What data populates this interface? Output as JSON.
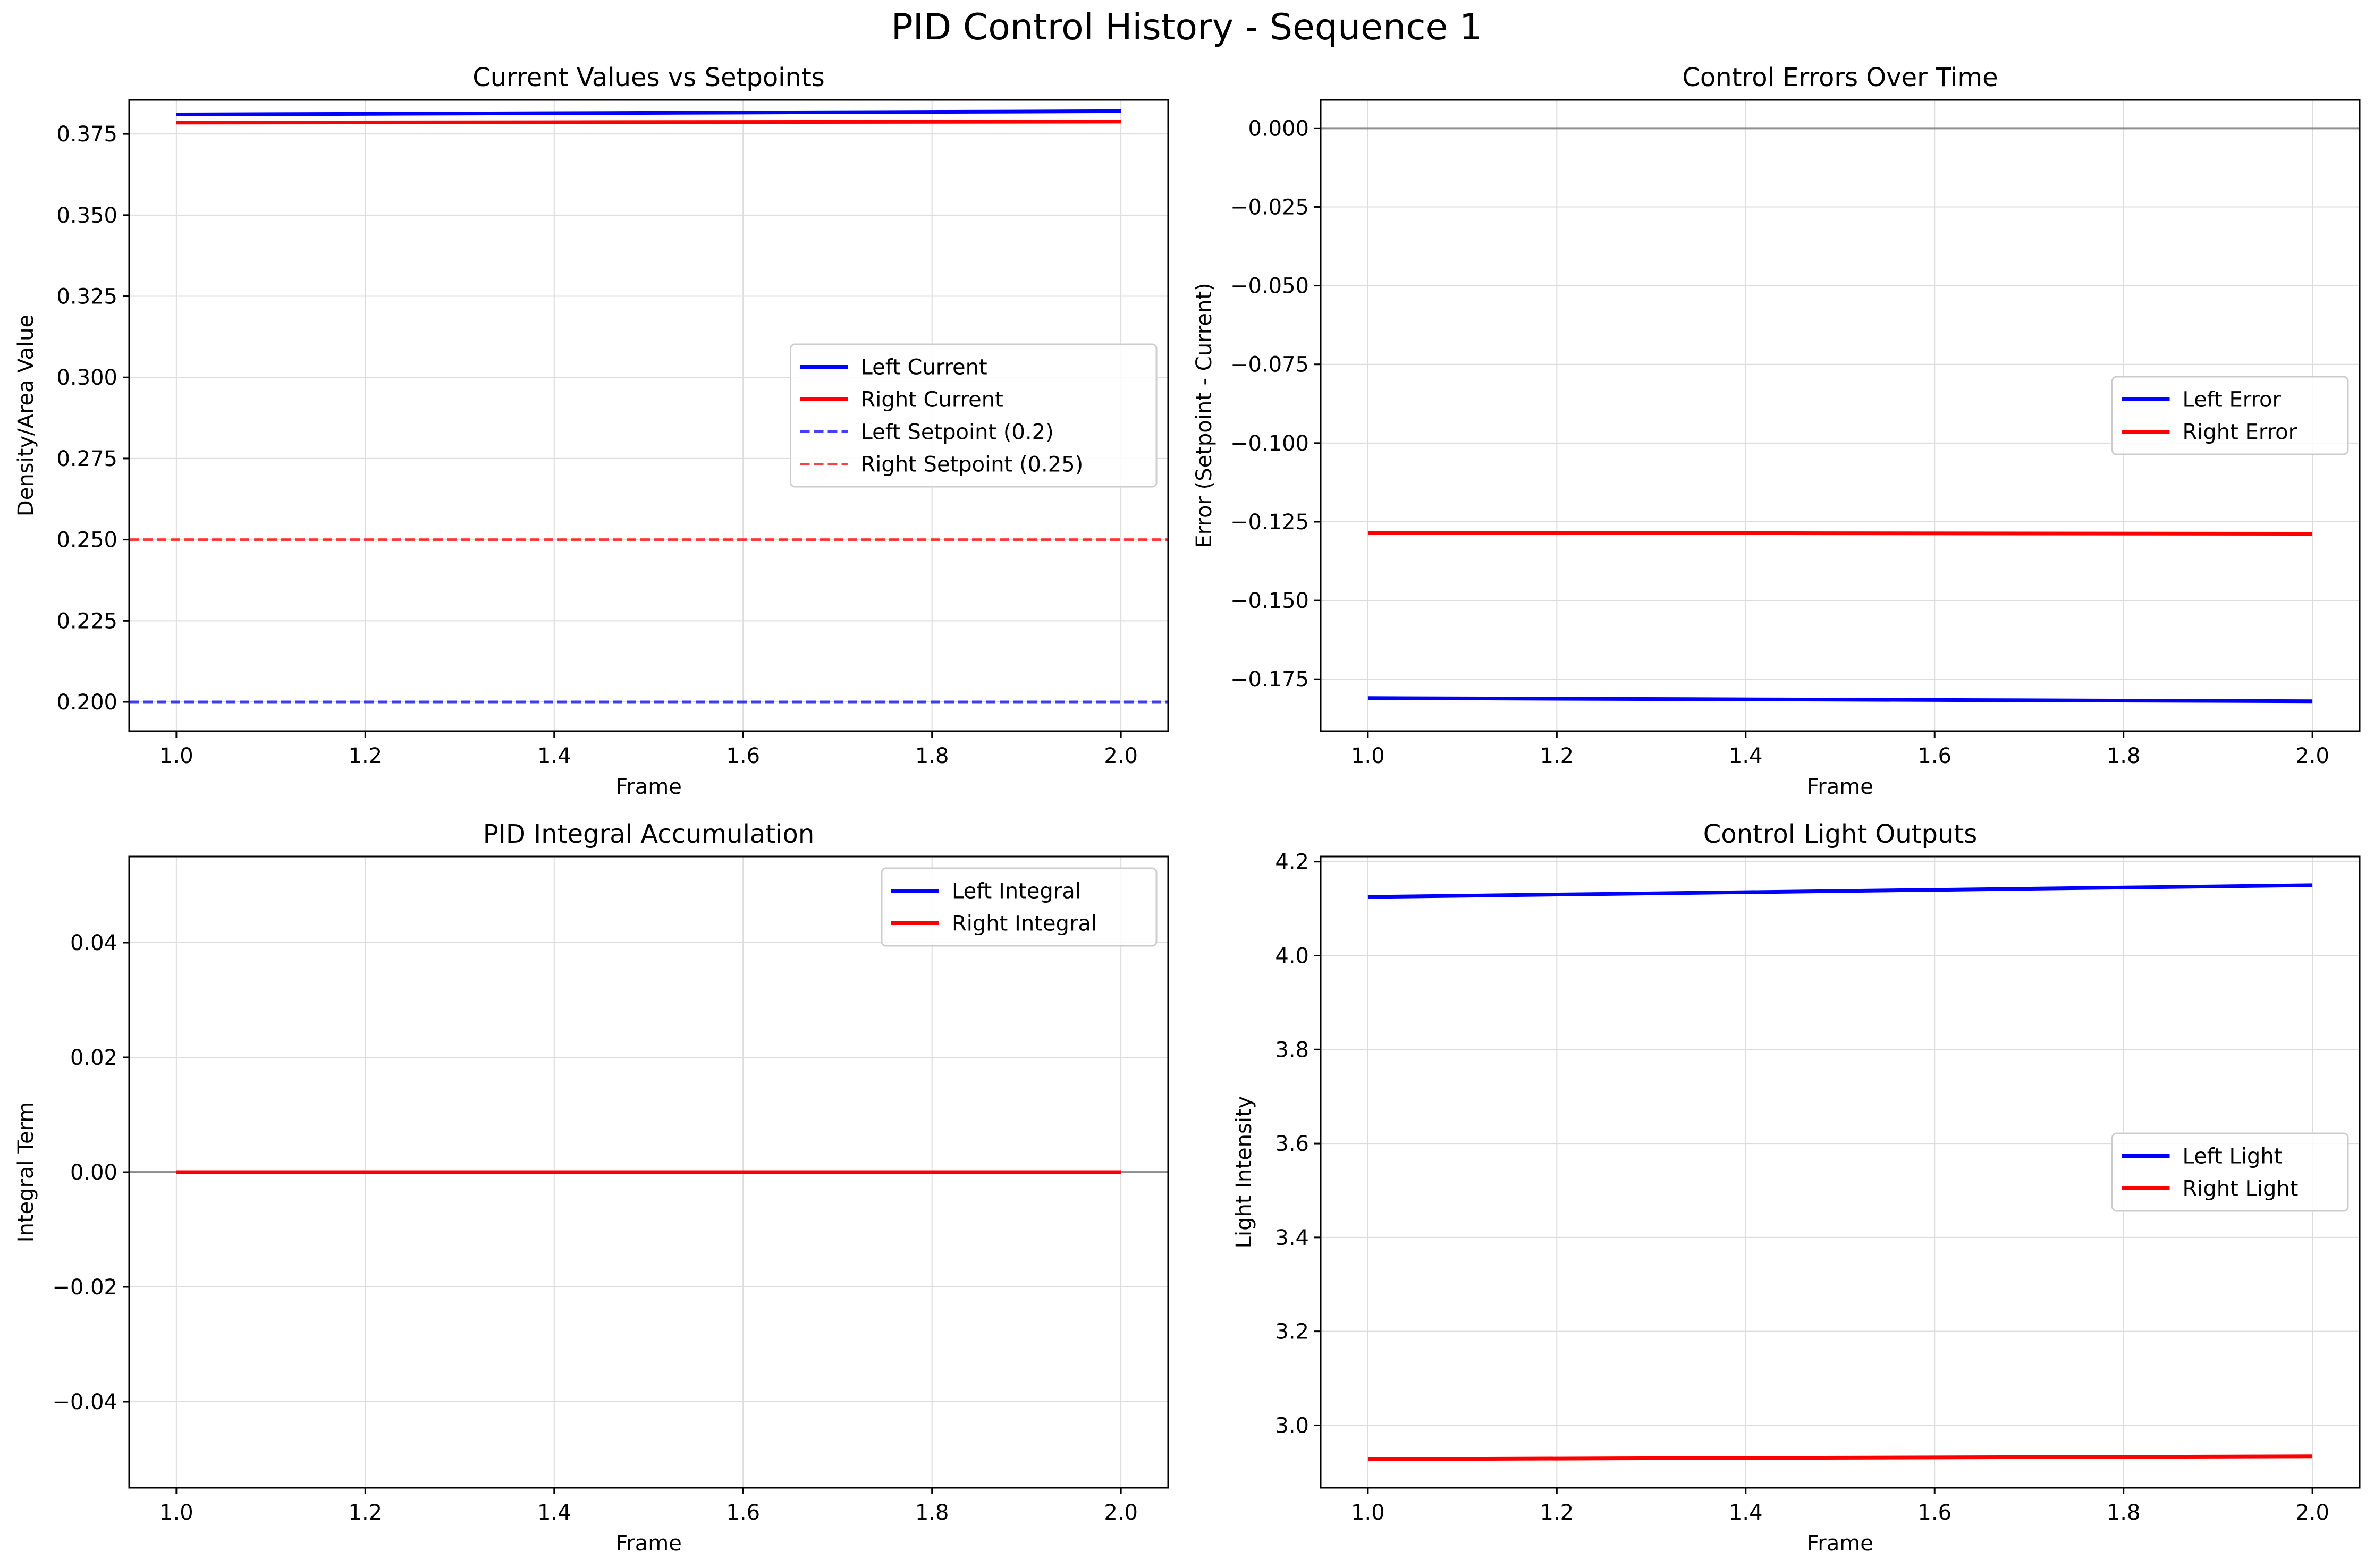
{
  "figure": {
    "title": "PID Control History - Sequence 1"
  },
  "chart_data": [
    {
      "type": "line",
      "title": "Current Values vs Setpoints",
      "xlabel": "Frame",
      "ylabel": "Density/Area Value",
      "xlim": [
        0.95,
        2.05
      ],
      "ylim": [
        0.191,
        0.3855
      ],
      "xticks": [
        1.0,
        1.2,
        1.4,
        1.6,
        1.8,
        2.0
      ],
      "xtick_labels": [
        "1.0",
        "1.2",
        "1.4",
        "1.6",
        "1.8",
        "2.0"
      ],
      "yticks": [
        0.2,
        0.225,
        0.25,
        0.275,
        0.3,
        0.325,
        0.35,
        0.375
      ],
      "ytick_labels": [
        "0.200",
        "0.225",
        "0.250",
        "0.275",
        "0.300",
        "0.325",
        "0.350",
        "0.375"
      ],
      "grid": true,
      "legend_position": "center-right",
      "series": [
        {
          "name": "Left Current",
          "x": [
            1.0,
            2.0
          ],
          "values": [
            0.381,
            0.382
          ],
          "color": "#0000ff",
          "style": "solid"
        },
        {
          "name": "Right Current",
          "x": [
            1.0,
            2.0
          ],
          "values": [
            0.3785,
            0.3788
          ],
          "color": "#ff0000",
          "style": "solid"
        },
        {
          "name": "Left Setpoint (0.2)",
          "hline": 0.2,
          "color": "#0000ff",
          "style": "dashed"
        },
        {
          "name": "Right Setpoint (0.25)",
          "hline": 0.25,
          "color": "#ff0000",
          "style": "dashed"
        }
      ]
    },
    {
      "type": "line",
      "title": "Control Errors Over Time",
      "xlabel": "Frame",
      "ylabel": "Error (Setpoint - Current)",
      "xlim": [
        0.95,
        2.05
      ],
      "ylim": [
        -0.1915,
        0.009
      ],
      "xticks": [
        1.0,
        1.2,
        1.4,
        1.6,
        1.8,
        2.0
      ],
      "xtick_labels": [
        "1.0",
        "1.2",
        "1.4",
        "1.6",
        "1.8",
        "2.0"
      ],
      "yticks": [
        0.0,
        -0.025,
        -0.05,
        -0.075,
        -0.1,
        -0.125,
        -0.15,
        -0.175
      ],
      "ytick_labels": [
        "0.000",
        "−0.025",
        "−0.050",
        "−0.075",
        "−0.100",
        "−0.125",
        "−0.150",
        "−0.175"
      ],
      "grid": true,
      "zero_line": 0.0,
      "legend_position": "center-right",
      "series": [
        {
          "name": "Left Error",
          "x": [
            1.0,
            2.0
          ],
          "values": [
            -0.181,
            -0.182
          ],
          "color": "#0000ff",
          "style": "solid"
        },
        {
          "name": "Right Error",
          "x": [
            1.0,
            2.0
          ],
          "values": [
            -0.1285,
            -0.1288
          ],
          "color": "#ff0000",
          "style": "solid"
        }
      ]
    },
    {
      "type": "line",
      "title": "PID Integral Accumulation",
      "xlabel": "Frame",
      "ylabel": "Integral Term",
      "xlim": [
        0.95,
        2.05
      ],
      "ylim": [
        -0.055,
        0.055
      ],
      "xticks": [
        1.0,
        1.2,
        1.4,
        1.6,
        1.8,
        2.0
      ],
      "xtick_labels": [
        "1.0",
        "1.2",
        "1.4",
        "1.6",
        "1.8",
        "2.0"
      ],
      "yticks": [
        0.04,
        0.02,
        0.0,
        -0.02,
        -0.04
      ],
      "ytick_labels": [
        "0.04",
        "0.02",
        "0.00",
        "−0.02",
        "−0.04"
      ],
      "grid": true,
      "zero_line": 0.0,
      "legend_position": "top-right",
      "series": [
        {
          "name": "Left Integral",
          "x": [
            1.0,
            2.0
          ],
          "values": [
            0.0,
            0.0
          ],
          "color": "#0000ff",
          "style": "solid"
        },
        {
          "name": "Right Integral",
          "x": [
            1.0,
            2.0
          ],
          "values": [
            0.0,
            0.0
          ],
          "color": "#ff0000",
          "style": "solid"
        }
      ]
    },
    {
      "type": "line",
      "title": "Control Light Outputs",
      "xlabel": "Frame",
      "ylabel": "Light Intensity",
      "xlim": [
        0.95,
        2.05
      ],
      "ylim": [
        2.867,
        4.211
      ],
      "xticks": [
        1.0,
        1.2,
        1.4,
        1.6,
        1.8,
        2.0
      ],
      "xtick_labels": [
        "1.0",
        "1.2",
        "1.4",
        "1.6",
        "1.8",
        "2.0"
      ],
      "yticks": [
        4.2,
        4.0,
        3.8,
        3.6,
        3.4,
        3.2,
        3.0
      ],
      "ytick_labels": [
        "4.2",
        "4.0",
        "3.8",
        "3.6",
        "3.4",
        "3.2",
        "3.0"
      ],
      "grid": true,
      "legend_position": "center-right",
      "series": [
        {
          "name": "Left Light",
          "x": [
            1.0,
            2.0
          ],
          "values": [
            4.125,
            4.15
          ],
          "color": "#0000ff",
          "style": "solid"
        },
        {
          "name": "Right Light",
          "x": [
            1.0,
            2.0
          ],
          "values": [
            2.928,
            2.934
          ],
          "color": "#ff0000",
          "style": "solid"
        }
      ]
    }
  ]
}
